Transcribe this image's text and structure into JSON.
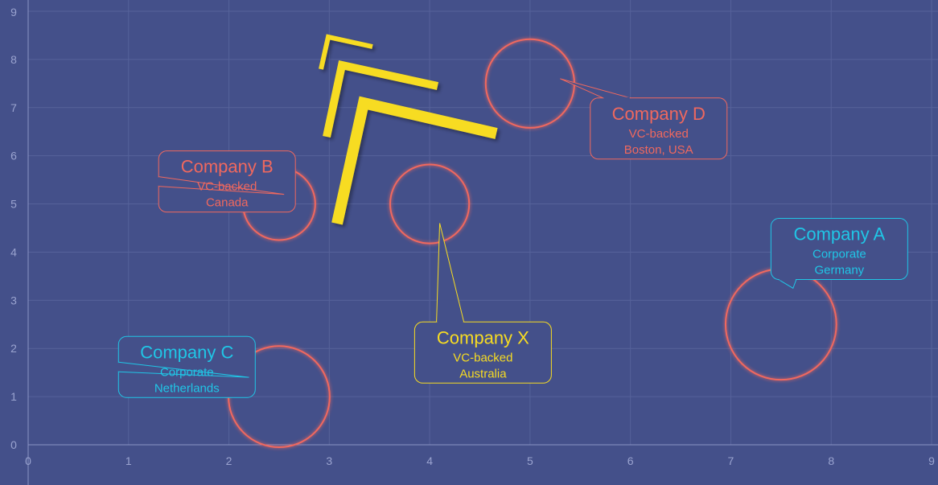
{
  "chart_data": {
    "type": "scatter",
    "title": "",
    "xlabel": "",
    "ylabel": "",
    "xlim": [
      0,
      9
    ],
    "ylim": [
      0,
      9
    ],
    "xticks": [
      "0",
      "1",
      "2",
      "3",
      "4",
      "5",
      "6",
      "7",
      "8",
      "9"
    ],
    "yticks": [
      "0",
      "1",
      "2",
      "3",
      "4",
      "5",
      "6",
      "7",
      "8",
      "9"
    ],
    "grid": true,
    "colors": {
      "background": "#44508a",
      "grid": "#56629a",
      "axis": "#8a93c4",
      "tick_text": "#9aa3cf",
      "vc": "#f0685e",
      "corporate": "#20c6e6",
      "focus": "#f7dc22"
    },
    "points": [
      {
        "name": "Company A",
        "type": "Corporate",
        "location": "Germany",
        "x": 7.5,
        "y": 2.5,
        "r": 1.15,
        "label_x": 7.4,
        "label_y": 4.7,
        "color": "corporate"
      },
      {
        "name": "Company B",
        "type": "VC-backed",
        "location": "Canada",
        "x": 2.5,
        "y": 5.0,
        "r": 0.75,
        "label_x": 1.3,
        "label_y": 6.1,
        "color": "vc"
      },
      {
        "name": "Company C",
        "type": "Corporate",
        "location": "Netherlands",
        "x": 2.5,
        "y": 1.0,
        "r": 1.05,
        "label_x": 0.9,
        "label_y": 2.25,
        "color": "corporate"
      },
      {
        "name": "Company D",
        "type": "VC-backed",
        "location": "Boston, USA",
        "x": 5.0,
        "y": 7.5,
        "r": 0.92,
        "label_x": 5.6,
        "label_y": 7.2,
        "color": "vc"
      },
      {
        "name": "Company X",
        "type": "VC-backed",
        "location": "Australia",
        "x": 4.0,
        "y": 5.0,
        "r": 0.82,
        "label_x": 3.85,
        "label_y": 2.55,
        "color": "focus"
      }
    ]
  }
}
